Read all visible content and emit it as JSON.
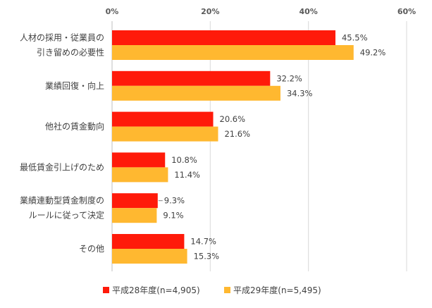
{
  "chart_data": {
    "type": "bar",
    "orientation": "horizontal",
    "xlim": [
      0,
      60
    ],
    "x_ticks": [
      "0%",
      "20%",
      "40%",
      "60%"
    ],
    "x_axis_position": "top",
    "grid": true,
    "legend_position": "bottom",
    "categories": [
      [
        "人材の採用・従業員の",
        "引き留めの必要性"
      ],
      [
        "業績回復・向上"
      ],
      [
        "他社の賃金動向"
      ],
      [
        "最低賃金引上げのため"
      ],
      [
        "業績連動型賃金制度の",
        "ルールに従って決定"
      ],
      [
        "その他"
      ]
    ],
    "series": [
      {
        "name": "平成28年度(n=4,905)",
        "color": "#ff1a0a",
        "values": [
          45.5,
          32.2,
          20.6,
          10.8,
          9.3,
          14.7
        ],
        "labels": [
          "45.5%",
          "32.2%",
          "20.6%",
          "10.8%",
          "9.3%",
          "14.7%"
        ]
      },
      {
        "name": "平成29年度(n=5,495)",
        "color": "#ffb830",
        "values": [
          49.2,
          34.3,
          21.6,
          11.4,
          9.1,
          15.3
        ],
        "labels": [
          "49.2%",
          "34.3%",
          "21.6%",
          "11.4%",
          "9.1%",
          "15.3%"
        ]
      }
    ]
  }
}
